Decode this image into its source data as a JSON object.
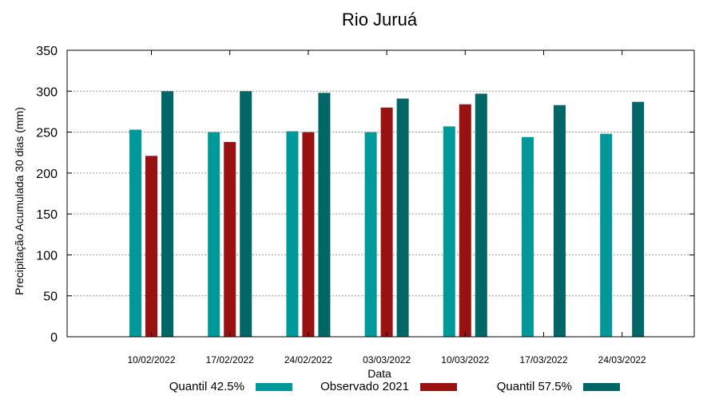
{
  "chart_data": {
    "type": "bar",
    "title": "Rio Juruá",
    "xlabel": "Data",
    "ylabel": "Precipitação Acumulada 30 dias (mm)",
    "ylim": [
      0,
      350
    ],
    "yticks": [
      0,
      50,
      100,
      150,
      200,
      250,
      300,
      350
    ],
    "grid": true,
    "legend_position": "bottom",
    "categories": [
      "10/02/2022",
      "17/02/2022",
      "24/02/2022",
      "03/03/2022",
      "10/03/2022",
      "17/03/2022",
      "24/03/2022"
    ],
    "series": [
      {
        "name": "Quantil 42.5%",
        "color": "#009999",
        "values": [
          253,
          250,
          251,
          250,
          257,
          244,
          248
        ]
      },
      {
        "name": "Observado 2021",
        "color": "#991111",
        "values": [
          221,
          238,
          250,
          280,
          284,
          null,
          null
        ]
      },
      {
        "name": "Quantil 57.5%",
        "color": "#006666",
        "values": [
          300,
          300,
          298,
          291,
          297,
          283,
          287
        ]
      }
    ]
  }
}
